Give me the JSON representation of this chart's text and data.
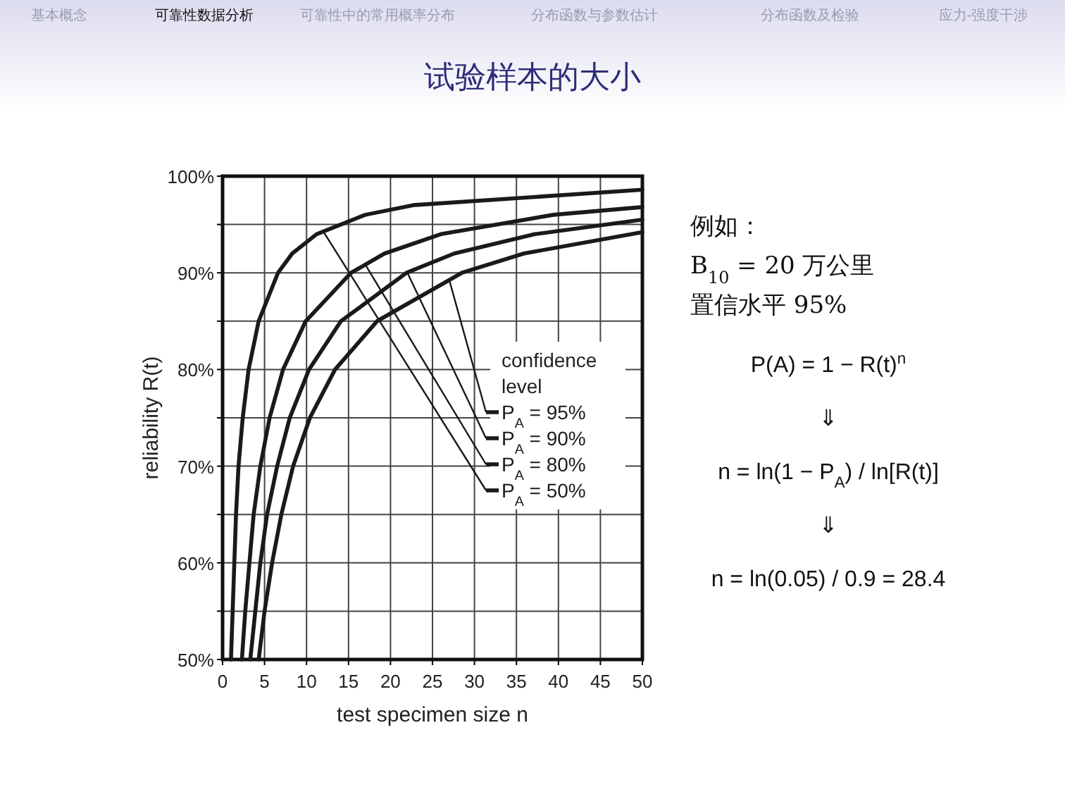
{
  "chart_data": {
    "type": "line",
    "title": "试验样本的大小",
    "xlabel": "test specimen size n",
    "ylabel": "reliability R(t)",
    "legend_title": "confidence level",
    "legend": "right",
    "grid": true,
    "xlim": [
      0,
      50
    ],
    "xticks": [
      0,
      5,
      10,
      15,
      20,
      25,
      30,
      35,
      40,
      45,
      50
    ],
    "ylim": [
      50,
      100
    ],
    "yticks": [
      {
        "value": 50,
        "label": "50%"
      },
      {
        "value": 55,
        "label": null
      },
      {
        "value": 60,
        "label": "60%"
      },
      {
        "value": 65,
        "label": null
      },
      {
        "value": 70,
        "label": "70%"
      },
      {
        "value": 75,
        "label": null
      },
      {
        "value": 80,
        "label": "80%"
      },
      {
        "value": 85,
        "label": null
      },
      {
        "value": 90,
        "label": "90%"
      },
      {
        "value": 95,
        "label": null
      },
      {
        "value": 100,
        "label": "100%"
      }
    ],
    "series": [
      {
        "name": "P$_{A}$ = 95%",
        "color": "#1a1a1a",
        "x": [
          4.3,
          5.0,
          5.9,
          7.0,
          8.4,
          10.4,
          13.4,
          18.4,
          28.5,
          35.9,
          50
        ],
        "values": [
          50,
          55,
          60,
          65,
          70,
          75,
          80,
          85,
          90,
          92,
          94.2
        ]
      },
      {
        "name": "P$_{A}$ = 90%",
        "color": "#1a1a1a",
        "x": [
          3.3,
          3.9,
          4.5,
          5.3,
          6.5,
          8.0,
          10.3,
          14.1,
          21.9,
          27.6,
          37.2,
          50
        ],
        "values": [
          50,
          55,
          60,
          65,
          70,
          75,
          80,
          85,
          90,
          92,
          94,
          95.5
        ]
      },
      {
        "name": "P$_{A}$ = 80%",
        "color": "#1a1a1a",
        "x": [
          2.3,
          2.7,
          3.2,
          3.7,
          4.5,
          5.6,
          7.2,
          9.9,
          15.3,
          19.3,
          26.0,
          39.4,
          50
        ],
        "values": [
          50,
          55,
          60,
          65,
          70,
          75,
          80,
          85,
          90,
          92,
          94,
          96,
          96.8
        ]
      },
      {
        "name": "P$_{A}$ = 50%",
        "color": "#1a1a1a",
        "x": [
          1.0,
          1.2,
          1.4,
          1.6,
          1.9,
          2.4,
          3.1,
          4.3,
          6.6,
          8.3,
          11.2,
          17.0,
          22.7,
          50
        ],
        "values": [
          50,
          55,
          60,
          65,
          70,
          75,
          80,
          85,
          90,
          92,
          94,
          96,
          97,
          98.6
        ]
      }
    ],
    "annotations": [
      "基本概念",
      "可靠性数据分析",
      "可靠性中的常用概率分布",
      "分布函数与参数估计",
      "分布函数及检验",
      "应力-强度干涉",
      "例如：",
      "B$_{10}$ = 20 万公里",
      "置信水平 95%",
      "P(A) = 1 − R(t)$^{n}$",
      "⇓",
      "n = ln(1 − P$_{A}$) / ln[R(t)]",
      "⇓",
      "n = ln(0.05) / 0.9 = 28.4"
    ]
  }
}
